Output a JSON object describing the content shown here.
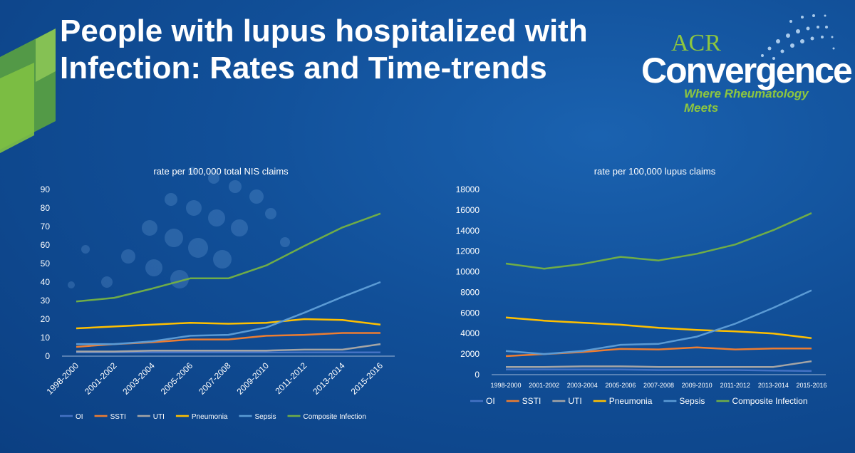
{
  "slide": {
    "title_line1": "People with lupus hospitalized with",
    "title_line2": "Infection: Rates and Time-trends"
  },
  "logo": {
    "acr": "ACR",
    "convergence": "Convergence",
    "tagline": "Where Rheumatology Meets"
  },
  "colors": {
    "OI": "#4472c4",
    "SSTI": "#ed7d31",
    "UTI": "#a5a5a5",
    "Pneumonia": "#ffc000",
    "Sepsis": "#5b9bd5",
    "Composite Infection": "#70ad47"
  },
  "chart_data": [
    {
      "type": "line",
      "title": "rate per 100,000 total NIS claims",
      "categories": [
        "1998-2000",
        "2001-2002",
        "2003-2004",
        "2005-2006",
        "2007-2008",
        "2009-2010",
        "2011-2012",
        "2013-2014",
        "2015-2016"
      ],
      "ylim": [
        0,
        90
      ],
      "yticks": [
        0,
        10,
        20,
        30,
        40,
        50,
        60,
        70,
        80,
        90
      ],
      "xlabel_rotated": true,
      "legend": "bottom",
      "series": [
        {
          "name": "OI",
          "values": [
            2,
            2,
            2,
            2,
            2,
            2,
            2,
            2,
            2
          ]
        },
        {
          "name": "SSTI",
          "values": [
            5,
            6.5,
            7.5,
            9,
            9,
            11,
            11.5,
            12.5,
            12.5
          ]
        },
        {
          "name": "UTI",
          "values": [
            2.5,
            2.5,
            3,
            3,
            3,
            3,
            3.5,
            3.5,
            6.5
          ]
        },
        {
          "name": "Pneumonia",
          "values": [
            15,
            16,
            17,
            18,
            17.5,
            18,
            20,
            19.5,
            17
          ]
        },
        {
          "name": "Sepsis",
          "values": [
            6.5,
            6.5,
            8,
            11,
            11.5,
            15.5,
            23.5,
            32,
            40
          ]
        },
        {
          "name": "Composite Infection",
          "values": [
            29.5,
            31.5,
            36.5,
            42,
            42,
            49,
            59.5,
            69.5,
            77
          ]
        }
      ]
    },
    {
      "type": "line",
      "title": "rate per 100,000 lupus claims",
      "categories": [
        "1998-2000",
        "2001-2002",
        "2003-2004",
        "2005-2006",
        "2007-2008",
        "2009-2010",
        "2011-2012",
        "2013-2014",
        "2015-2016"
      ],
      "ylim": [
        0,
        18000
      ],
      "yticks": [
        0,
        2000,
        4000,
        6000,
        8000,
        10000,
        12000,
        14000,
        16000,
        18000
      ],
      "xlabel_rotated": false,
      "legend": "bottom",
      "series": [
        {
          "name": "OI",
          "values": [
            500,
            500,
            500,
            500,
            450,
            450,
            450,
            400,
            350
          ]
        },
        {
          "name": "SSTI",
          "values": [
            1800,
            2000,
            2200,
            2500,
            2450,
            2650,
            2450,
            2550,
            2550
          ]
        },
        {
          "name": "UTI",
          "values": [
            750,
            750,
            800,
            800,
            750,
            750,
            750,
            750,
            1300
          ]
        },
        {
          "name": "Pneumonia",
          "values": [
            5550,
            5250,
            5050,
            4850,
            4550,
            4350,
            4200,
            4000,
            3550
          ]
        },
        {
          "name": "Sepsis",
          "values": [
            2300,
            2000,
            2300,
            2900,
            3000,
            3700,
            4950,
            6500,
            8200
          ]
        },
        {
          "name": "Composite Infection",
          "values": [
            10800,
            10300,
            10750,
            11450,
            11100,
            11750,
            12650,
            14050,
            15700
          ]
        }
      ]
    }
  ]
}
